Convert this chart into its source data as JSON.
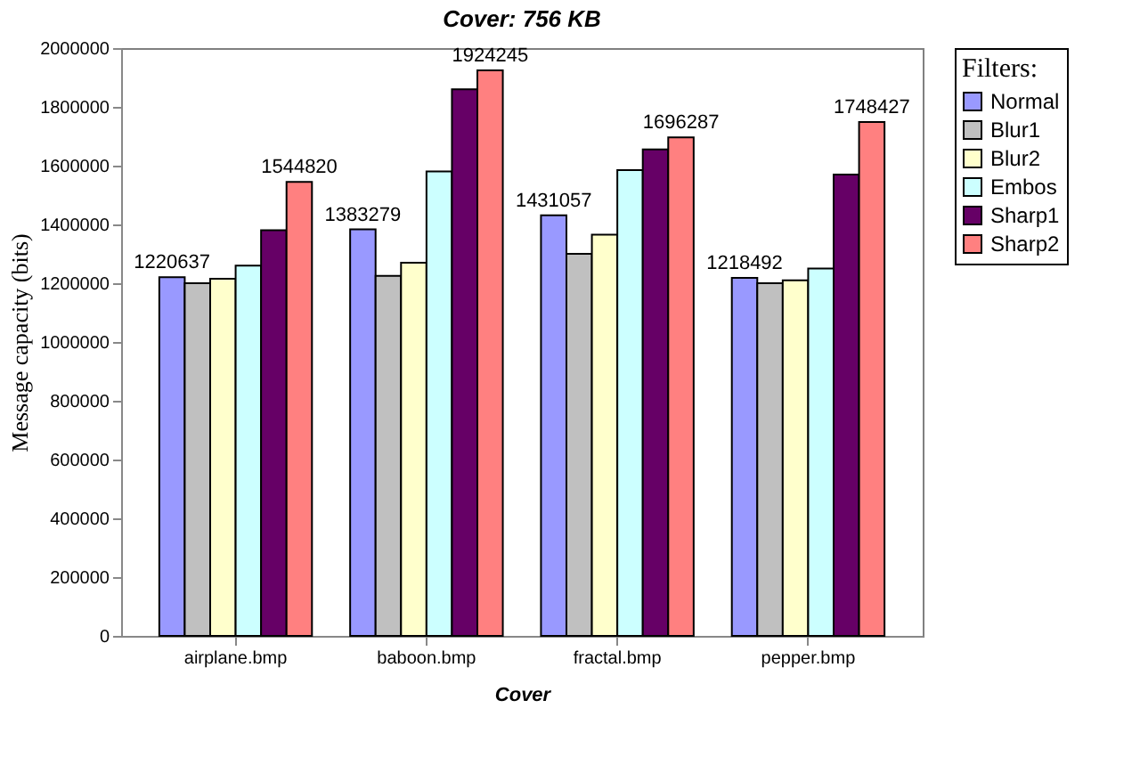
{
  "chart_data": {
    "type": "bar",
    "title": "Cover: 756 KB",
    "xlabel": "Cover",
    "ylabel": "Message capacity (bits)",
    "legend_title": "Filters:",
    "categories": [
      "airplane.bmp",
      "baboon.bmp",
      "fractal.bmp",
      "pepper.bmp"
    ],
    "series": [
      {
        "name": "Normal",
        "color": "#9999ff",
        "values": [
          1220637,
          1383279,
          1431057,
          1218492
        ],
        "value_labels": [
          "1220637",
          "1383279",
          "1431057",
          "1218492"
        ]
      },
      {
        "name": "Blur1",
        "color": "#c0c0c0",
        "values": [
          1200000,
          1225000,
          1300000,
          1200000
        ]
      },
      {
        "name": "Blur2",
        "color": "#ffffcc",
        "values": [
          1215000,
          1270000,
          1365000,
          1210000
        ]
      },
      {
        "name": "Embos",
        "color": "#ccffff",
        "values": [
          1260000,
          1580000,
          1585000,
          1250000
        ]
      },
      {
        "name": "Sharp1",
        "color": "#660066",
        "values": [
          1380000,
          1860000,
          1655000,
          1570000
        ]
      },
      {
        "name": "Sharp2",
        "color": "#ff8080",
        "values": [
          1544820,
          1924245,
          1696287,
          1748427
        ],
        "value_labels": [
          "1544820",
          "1924245",
          "1696287",
          "1748427"
        ]
      }
    ],
    "ylim": [
      0,
      2000000
    ],
    "yticks": [
      0,
      200000,
      400000,
      600000,
      800000,
      1000000,
      1200000,
      1400000,
      1600000,
      1800000,
      2000000
    ],
    "grid": false,
    "legend": "right"
  }
}
